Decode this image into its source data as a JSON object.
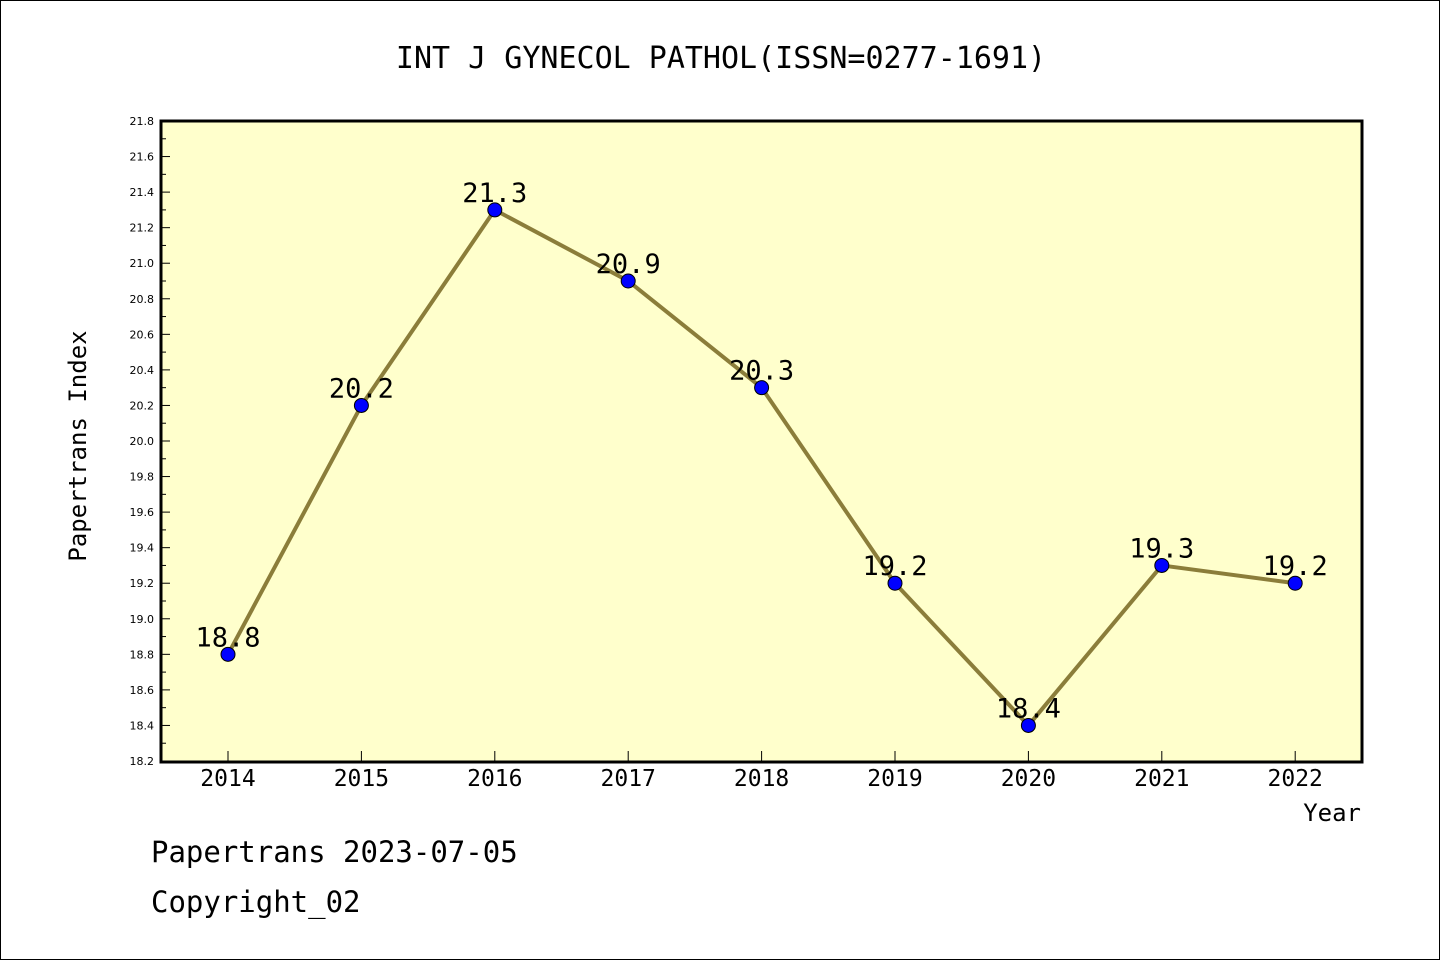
{
  "chart_data": {
    "type": "line",
    "title": "INT J GYNECOL PATHOL(ISSN=0277-1691)",
    "xlabel": "Year",
    "ylabel": "Papertrans Index",
    "x": [
      "2014",
      "2015",
      "2016",
      "2017",
      "2018",
      "2019",
      "2020",
      "2021",
      "2022"
    ],
    "series": [
      {
        "values": [
          18.8,
          20.2,
          21.3,
          20.9,
          20.3,
          19.2,
          18.4,
          19.3,
          19.2
        ],
        "data_labels": [
          "18.8",
          "20.2",
          "21.3",
          "20.9",
          "20.3",
          "19.2",
          "18.4",
          "19.3",
          "19.2"
        ]
      }
    ],
    "ylim": [
      18.2,
      21.8
    ],
    "yticks": [
      "18.2",
      "18.4",
      "18.6",
      "18.8",
      "19.0",
      "19.2",
      "19.4",
      "19.6",
      "19.8",
      "20.0",
      "20.2",
      "20.4",
      "20.6",
      "20.8",
      "21.0",
      "21.2",
      "21.4",
      "21.6",
      "21.8"
    ],
    "grid": false,
    "colors": {
      "plot_background": "#ffffcc",
      "line": "#8b7d3a",
      "marker": "#0000ff"
    }
  },
  "footer": {
    "source_line": "Papertrans 2023-07-05",
    "copyright_line": "Copyright_02"
  }
}
